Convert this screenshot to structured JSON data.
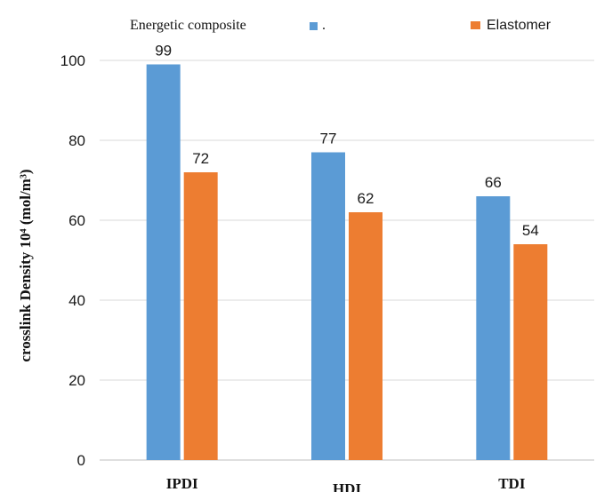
{
  "chart_data": {
    "type": "bar",
    "categories": [
      "IPDI",
      "HDI",
      "TDI"
    ],
    "series": [
      {
        "name": "Energetic composite",
        "legend_text": "Energetic composite",
        "legend_suffix": ".",
        "color": "#5b9bd5",
        "values": [
          99,
          77,
          66
        ]
      },
      {
        "name": "Elastomer",
        "legend_text": "Elastomer",
        "color": "#ed7d31",
        "values": [
          72,
          62,
          54
        ]
      }
    ],
    "title": "",
    "xlabel": "",
    "ylabel": "crosslink Density 10⁴ (mol/m³)",
    "ylim": [
      0,
      100
    ],
    "yticks": [
      0,
      20,
      40,
      60,
      80,
      100
    ],
    "grid": true,
    "legend_position": "top"
  }
}
